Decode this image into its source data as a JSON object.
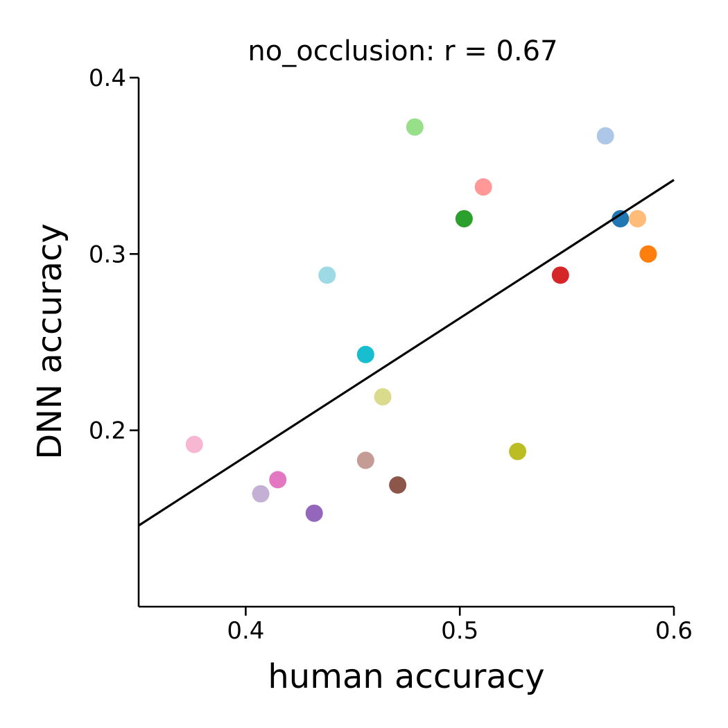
{
  "chart_data": {
    "type": "scatter",
    "title": "no_occlusion: r = 0.67",
    "xlabel": "human accuracy",
    "ylabel": "DNN accuracy",
    "xlim": [
      0.35,
      0.6
    ],
    "ylim": [
      0.1,
      0.4
    ],
    "xticks": [
      0.4,
      0.5,
      0.6
    ],
    "xtick_labels": [
      "0.4",
      "0.5",
      "0.6"
    ],
    "yticks": [
      0.2,
      0.3,
      0.4
    ],
    "ytick_labels": [
      "0.2",
      "0.3",
      "0.4"
    ],
    "grid": false,
    "legend": "none",
    "points": [
      {
        "x": 0.575,
        "y": 0.32,
        "color": "#1f77b4"
      },
      {
        "x": 0.568,
        "y": 0.367,
        "color": "#aec7e8"
      },
      {
        "x": 0.588,
        "y": 0.3,
        "color": "#ff7f0e"
      },
      {
        "x": 0.583,
        "y": 0.32,
        "color": "#ffbb78"
      },
      {
        "x": 0.502,
        "y": 0.32,
        "color": "#2ca02c"
      },
      {
        "x": 0.479,
        "y": 0.372,
        "color": "#98df8a"
      },
      {
        "x": 0.547,
        "y": 0.288,
        "color": "#d62728"
      },
      {
        "x": 0.511,
        "y": 0.338,
        "color": "#ff9896"
      },
      {
        "x": 0.432,
        "y": 0.153,
        "color": "#9467bd"
      },
      {
        "x": 0.407,
        "y": 0.164,
        "color": "#c5b0d5"
      },
      {
        "x": 0.471,
        "y": 0.169,
        "color": "#8c564b"
      },
      {
        "x": 0.456,
        "y": 0.183,
        "color": "#c49c94"
      },
      {
        "x": 0.415,
        "y": 0.172,
        "color": "#e377c2"
      },
      {
        "x": 0.376,
        "y": 0.192,
        "color": "#f7b6d2"
      },
      {
        "x": 0.527,
        "y": 0.188,
        "color": "#bcbd22"
      },
      {
        "x": 0.464,
        "y": 0.219,
        "color": "#dbdb8d"
      },
      {
        "x": 0.456,
        "y": 0.243,
        "color": "#17becf"
      },
      {
        "x": 0.438,
        "y": 0.288,
        "color": "#9edae5"
      }
    ],
    "fit_line": {
      "x": [
        0.35,
        0.6
      ],
      "y": [
        0.146,
        0.342
      ],
      "color": "#000000"
    }
  }
}
